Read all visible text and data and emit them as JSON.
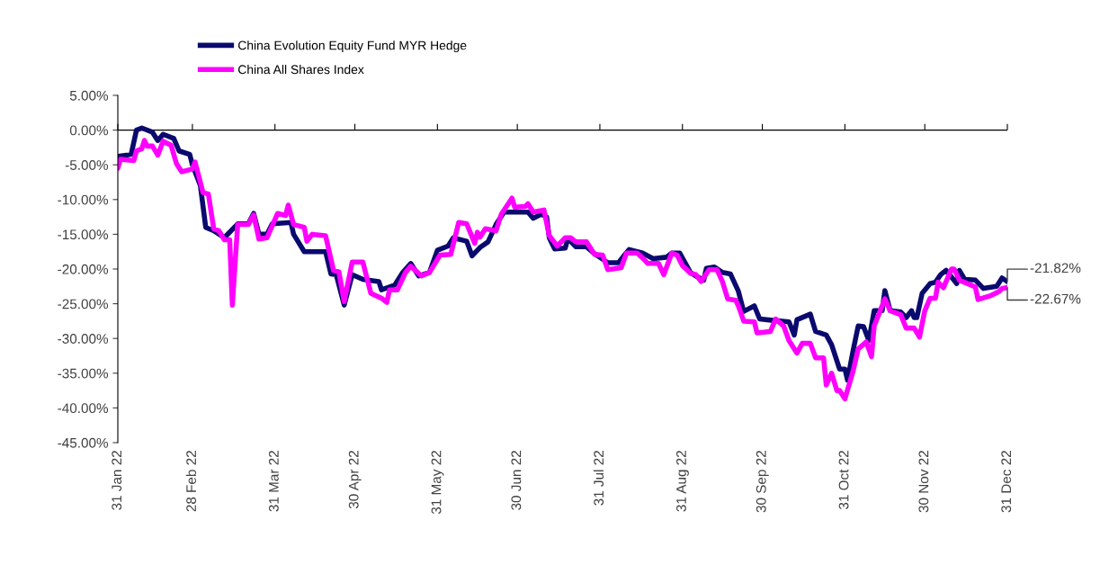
{
  "chart_data": {
    "type": "line",
    "x": [
      "2022-01-31",
      "2022-02-05",
      "2022-02-07",
      "2022-02-09",
      "2022-02-13",
      "2022-02-15",
      "2022-02-17",
      "2022-02-21",
      "2022-02-23",
      "2022-02-27",
      "2022-02-28",
      "2022-03-03",
      "2022-03-05",
      "2022-03-08",
      "2022-03-12",
      "2022-03-17",
      "2022-03-21",
      "2022-03-23",
      "2022-03-25",
      "2022-03-28",
      "2022-03-30",
      "2022-04-06",
      "2022-04-07",
      "2022-04-11",
      "2022-04-19",
      "2022-04-21",
      "2022-04-23",
      "2022-04-26",
      "2022-04-29",
      "2022-05-03",
      "2022-05-09",
      "2022-05-10",
      "2022-05-15",
      "2022-05-18",
      "2022-05-21",
      "2022-05-24",
      "2022-05-28",
      "2022-05-31",
      "2022-06-04",
      "2022-06-06",
      "2022-06-09",
      "2022-06-11",
      "2022-06-13",
      "2022-06-16",
      "2022-06-19",
      "2022-06-22",
      "2022-06-25",
      "2022-07-04",
      "2022-07-06",
      "2022-07-09",
      "2022-07-11",
      "2022-07-12",
      "2022-07-14",
      "2022-07-18",
      "2022-07-19",
      "2022-07-22",
      "2022-07-26",
      "2022-07-29",
      "2022-08-03",
      "2022-08-07",
      "2022-08-09",
      "2022-08-11",
      "2022-08-16",
      "2022-08-20",
      "2022-08-25",
      "2022-08-27",
      "2022-08-30",
      "2022-09-01",
      "2022-09-03",
      "2022-09-05",
      "2022-09-08",
      "2022-09-09",
      "2022-09-12",
      "2022-09-15",
      "2022-09-18",
      "2022-09-21",
      "2022-09-23",
      "2022-09-27",
      "2022-09-29",
      "2022-10-04",
      "2022-10-10",
      "2022-10-12",
      "2022-10-13",
      "2022-10-18",
      "2022-10-20",
      "2022-10-24",
      "2022-10-26",
      "2022-10-29",
      "2022-10-31",
      "2022-11-01",
      "2022-11-03",
      "2022-11-05",
      "2022-11-07",
      "2022-11-09",
      "2022-11-11",
      "2022-11-14",
      "2022-11-15",
      "2022-11-17",
      "2022-11-21",
      "2022-11-23",
      "2022-11-25",
      "2022-11-26",
      "2022-11-27",
      "2022-11-29",
      "2022-12-02",
      "2022-12-04",
      "2022-12-06",
      "2022-12-08",
      "2022-12-12",
      "2022-12-13",
      "2022-12-15",
      "2022-12-19",
      "2022-12-22",
      "2022-12-27",
      "2022-12-29",
      "2022-12-31"
    ],
    "series": [
      {
        "name": "China Evolution Equity Fund MYR Hedge",
        "color": "#0a0a6e",
        "values": [
          -3.8,
          -3.5,
          0,
          0.3,
          -0.3,
          -1.5,
          -0.6,
          -1.2,
          -3,
          -3.5,
          -5,
          -8,
          -14,
          -14.5,
          -15.5,
          -13.5,
          -13.5,
          -12,
          -15,
          -15,
          -13.5,
          -13.3,
          -15,
          -17.5,
          -17.5,
          -20.7,
          -20.8,
          -25.2,
          -20.8,
          -21.5,
          -21.8,
          -23,
          -22.3,
          -20.5,
          -19.2,
          -21,
          -20.5,
          -17.3,
          -16.7,
          -15.5,
          -15.8,
          -16,
          -18.1,
          -16.9,
          -16.1,
          -13.6,
          -11.8,
          -11.8,
          -12.7,
          -12.1,
          -12.5,
          -15.5,
          -17.1,
          -17,
          -15.6,
          -16.8,
          -16.8,
          -17.8,
          -19.1,
          -19.1,
          -18.1,
          -17.2,
          -17.7,
          -18.5,
          -18.3,
          -17.7,
          -17.7,
          -19.1,
          -20.5,
          -21,
          -21.6,
          -19.9,
          -19.7,
          -20.5,
          -20.7,
          -23.2,
          -26.1,
          -25.3,
          -27.2,
          -27.4,
          -27.6,
          -29.5,
          -27.3,
          -26.5,
          -29,
          -29.5,
          -30.9,
          -34.4,
          -34.4,
          -36,
          -31.9,
          -28.2,
          -28.3,
          -30.3,
          -26,
          -26,
          -23.1,
          -26,
          -26.2,
          -27,
          -26,
          -27,
          -27,
          -23.5,
          -22.1,
          -21.9,
          -20.8,
          -20.2,
          -22.1,
          -20.2,
          -21.5,
          -21.6,
          -22.8,
          -22.5,
          -21.3,
          -21.82
        ]
      },
      {
        "name": "China All Shares Index",
        "color": "#ff00ff",
        "x": [
          "2022-01-31",
          "2022-02-01",
          "2022-02-06",
          "2022-02-07",
          "2022-02-09",
          "2022-02-10",
          "2022-02-11",
          "2022-02-13",
          "2022-02-15",
          "2022-02-17",
          "2022-02-20",
          "2022-02-22",
          "2022-02-24",
          "2022-02-28",
          "2022-03-01",
          "2022-03-04",
          "2022-03-06",
          "2022-03-08",
          "2022-03-10",
          "2022-03-12",
          "2022-03-14",
          "2022-03-15",
          "2022-03-17",
          "2022-03-21",
          "2022-03-23",
          "2022-03-25",
          "2022-03-28",
          "2022-04-01",
          "2022-04-04",
          "2022-04-05",
          "2022-04-07",
          "2022-04-11",
          "2022-04-12",
          "2022-04-14",
          "2022-04-19",
          "2022-04-22",
          "2022-04-24",
          "2022-04-26",
          "2022-04-29",
          "2022-05-03",
          "2022-05-06",
          "2022-05-10",
          "2022-05-12",
          "2022-05-13",
          "2022-05-16",
          "2022-05-19",
          "2022-05-21",
          "2022-05-25",
          "2022-05-28",
          "2022-06-01",
          "2022-06-05",
          "2022-06-08",
          "2022-06-11",
          "2022-06-14",
          "2022-06-15",
          "2022-06-16",
          "2022-06-18",
          "2022-06-22",
          "2022-06-24",
          "2022-06-28",
          "2022-06-29",
          "2022-07-03",
          "2022-07-04",
          "2022-07-06",
          "2022-07-10",
          "2022-07-12",
          "2022-07-15",
          "2022-07-18",
          "2022-07-20",
          "2022-07-22",
          "2022-07-26",
          "2022-07-29",
          "2022-08-01",
          "2022-08-03",
          "2022-08-08",
          "2022-08-10",
          "2022-08-14",
          "2022-08-16",
          "2022-08-18",
          "2022-08-22",
          "2022-08-24",
          "2022-08-27",
          "2022-08-29",
          "2022-08-31",
          "2022-09-03",
          "2022-09-05",
          "2022-09-07",
          "2022-09-10",
          "2022-09-13",
          "2022-09-15",
          "2022-09-17",
          "2022-09-20",
          "2022-09-21",
          "2022-09-23",
          "2022-09-27",
          "2022-09-28",
          "2022-10-03",
          "2022-10-05",
          "2022-10-08",
          "2022-10-10",
          "2022-10-13",
          "2022-10-15",
          "2022-10-18",
          "2022-10-20",
          "2022-10-23",
          "2022-10-24",
          "2022-10-26",
          "2022-10-28",
          "2022-10-29",
          "2022-10-31",
          "2022-11-03",
          "2022-11-05",
          "2022-11-08",
          "2022-11-10",
          "2022-11-11",
          "2022-11-15",
          "2022-11-17",
          "2022-11-21",
          "2022-11-23",
          "2022-11-26",
          "2022-11-28",
          "2022-11-30",
          "2022-12-02",
          "2022-12-04",
          "2022-12-05",
          "2022-12-07",
          "2022-12-10",
          "2022-12-11",
          "2022-12-13",
          "2022-12-19",
          "2022-12-20",
          "2022-12-25",
          "2022-12-28",
          "2022-12-29",
          "2022-12-31"
        ],
        "values": [
          -5.5,
          -4.2,
          -4.4,
          -3,
          -2.7,
          -1.5,
          -2.3,
          -2.3,
          -3.6,
          -1.6,
          -2.2,
          -4.8,
          -6,
          -5.6,
          -4.6,
          -9,
          -9.2,
          -14.2,
          -14.5,
          -15.8,
          -15.8,
          -25.2,
          -13.6,
          -13.6,
          -12.2,
          -15.7,
          -15.5,
          -12,
          -12.3,
          -10.8,
          -13.6,
          -14,
          -16,
          -15,
          -15.2,
          -20.2,
          -20.4,
          -24.7,
          -19,
          -19,
          -23.5,
          -24.2,
          -24.8,
          -23,
          -23,
          -20.5,
          -19.6,
          -21,
          -20.5,
          -18,
          -17.9,
          -13.3,
          -13.5,
          -16.3,
          -14.7,
          -15.4,
          -14.2,
          -14.5,
          -12.1,
          -9.8,
          -11.1,
          -11,
          -10.6,
          -11.8,
          -11.5,
          -15.2,
          -16.7,
          -15.5,
          -15.5,
          -16.1,
          -16.1,
          -17.9,
          -18,
          -20.1,
          -19.8,
          -17.7,
          -17.7,
          -18.4,
          -19.2,
          -19.2,
          -20.8,
          -17.7,
          -18,
          -19.5,
          -20.6,
          -20.8,
          -21.8,
          -20.1,
          -20.1,
          -21.8,
          -24.3,
          -24.5,
          -25.3,
          -27.5,
          -27.6,
          -29.2,
          -29,
          -27.2,
          -28.2,
          -30.3,
          -32.1,
          -30.7,
          -30.7,
          -32.8,
          -32.8,
          -36.7,
          -35,
          -37.5,
          -37.5,
          -38.7,
          -34.8,
          -31.5,
          -30.5,
          -32.6,
          -28.2,
          -24.3,
          -26,
          -26.6,
          -28.5,
          -28.5,
          -29.8,
          -26,
          -24.2,
          -24.2,
          -21.9,
          -22.7,
          -20,
          -20,
          -21.6,
          -22.6,
          -24.4,
          -23.8,
          -23.2,
          -22.8,
          -22.67
        ]
      }
    ],
    "xlim": [
      "2022-01-31",
      "2022-12-31"
    ],
    "xticks": [
      {
        "value": "2022-01-31",
        "label": "31 Jan 22"
      },
      {
        "value": "2022-02-28",
        "label": "28 Feb 22"
      },
      {
        "value": "2022-03-31",
        "label": "31 Mar 22"
      },
      {
        "value": "2022-04-30",
        "label": "30 Apr 22"
      },
      {
        "value": "2022-05-31",
        "label": "31 May 22"
      },
      {
        "value": "2022-06-30",
        "label": "30 Jun 22"
      },
      {
        "value": "2022-07-31",
        "label": "31 Jul 22"
      },
      {
        "value": "2022-08-31",
        "label": "31 Aug 22"
      },
      {
        "value": "2022-09-30",
        "label": "30 Sep 22"
      },
      {
        "value": "2022-10-31",
        "label": "31 Oct 22"
      },
      {
        "value": "2022-11-30",
        "label": "30 Nov 22"
      },
      {
        "value": "2022-12-31",
        "label": "31 Dec 22"
      }
    ],
    "ylim": [
      -45,
      5
    ],
    "yticks": [
      {
        "value": 5,
        "label": "5.00%"
      },
      {
        "value": 0,
        "label": "0.00%"
      },
      {
        "value": -5,
        "label": "-5.00%"
      },
      {
        "value": -10,
        "label": "-10.00%"
      },
      {
        "value": -15,
        "label": "-15.00%"
      },
      {
        "value": -20,
        "label": "-20.00%"
      },
      {
        "value": -25,
        "label": "-25.00%"
      },
      {
        "value": -30,
        "label": "-30.00%"
      },
      {
        "value": -35,
        "label": "-35.00%"
      },
      {
        "value": -40,
        "label": "-40.00%"
      },
      {
        "value": -45,
        "label": "-45.00%"
      }
    ],
    "annotations": [
      {
        "text": "-21.82%",
        "x": "2022-12-31",
        "y": -21.82
      },
      {
        "text": "-22.67%",
        "x": "2022-12-31",
        "y": -22.67
      }
    ],
    "ref_lines": [
      {
        "axis": "y",
        "value": 0,
        "label": null,
        "color": "#000000"
      }
    ],
    "legend": "top left",
    "grid": false,
    "marker": "none",
    "line_style": "solid"
  }
}
